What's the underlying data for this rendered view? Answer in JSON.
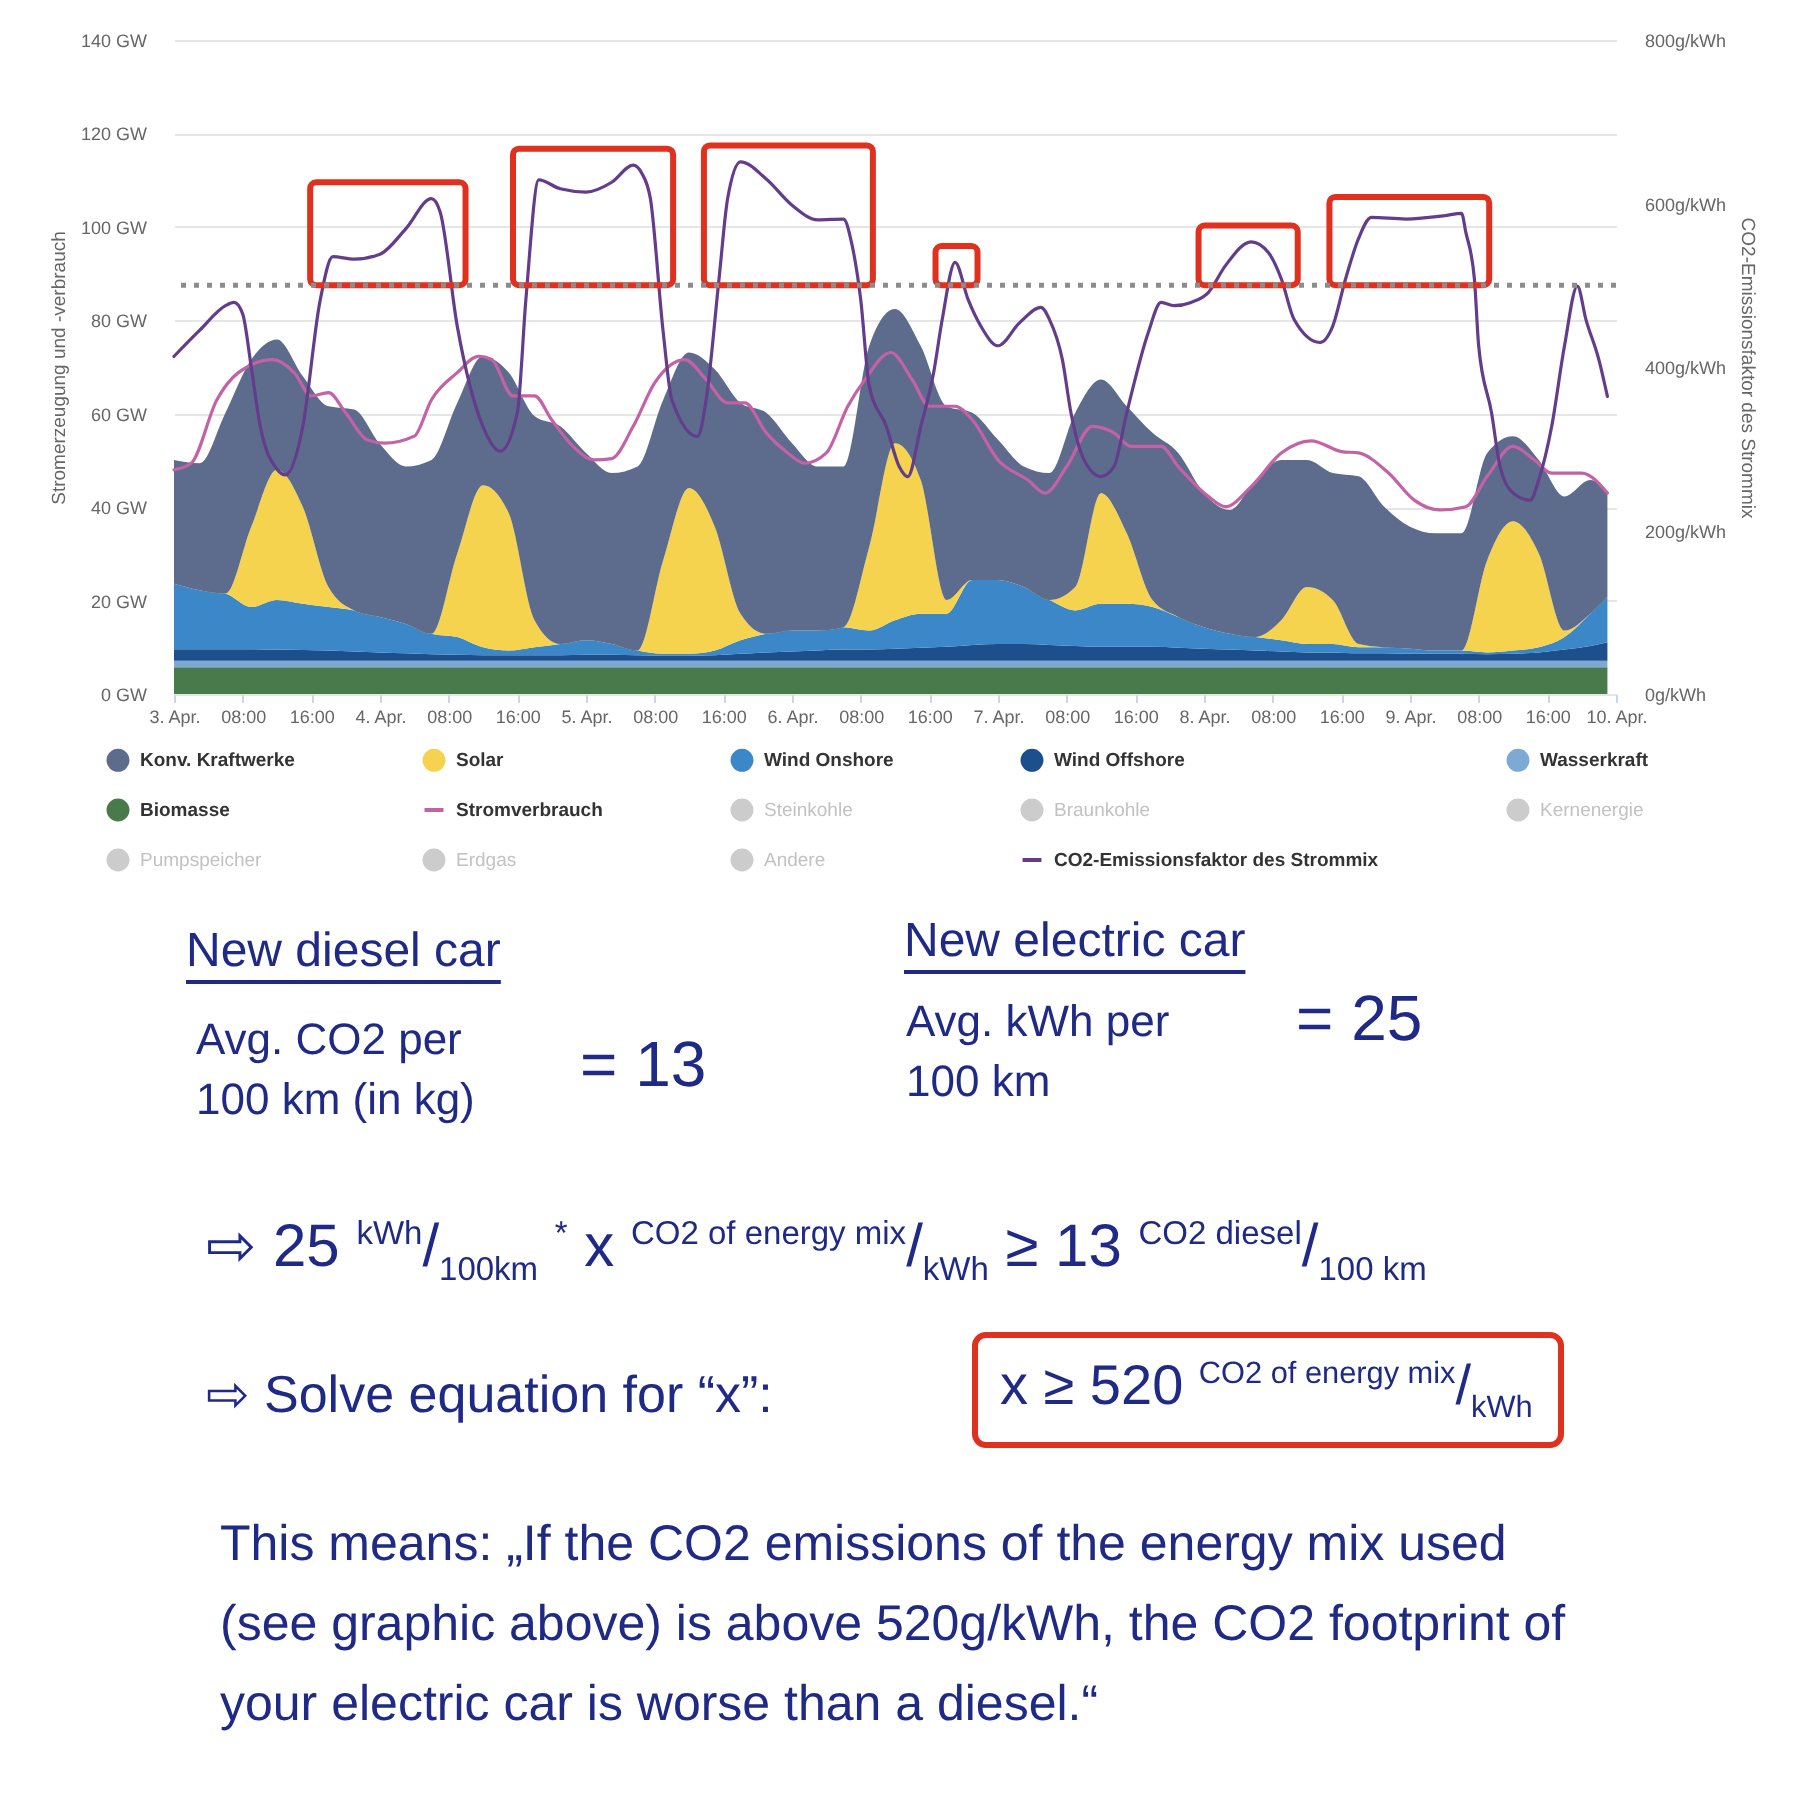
{
  "chart_data": {
    "type": "area",
    "stacked": true,
    "legend": "bottom",
    "grid": "y",
    "ylabel": "Stromerzeugung und -verbrauch",
    "y2label": "CO2-Emissionsfaktor des Strommix",
    "x": [
      "--04-03T00:00",
      "--04-03T03:00",
      "--04-03T06:00",
      "--04-03T09:00",
      "--04-03T12:00",
      "--04-03T15:00",
      "--04-03T18:00",
      "--04-03T21:00",
      "--04-04T00:00",
      "--04-04T03:00",
      "--04-04T06:00",
      "--04-04T09:00",
      "--04-04T12:00",
      "--04-04T15:00",
      "--04-04T18:00",
      "--04-04T21:00",
      "--04-05T00:00",
      "--04-05T03:00",
      "--04-05T06:00",
      "--04-05T09:00",
      "--04-05T12:00",
      "--04-05T15:00",
      "--04-05T18:00",
      "--04-05T21:00",
      "--04-06T00:00",
      "--04-06T03:00",
      "--04-06T06:00",
      "--04-06T09:00",
      "--04-06T12:00",
      "--04-06T15:00",
      "--04-06T18:00",
      "--04-06T21:00",
      "--04-07T00:00",
      "--04-07T03:00",
      "--04-07T06:00",
      "--04-07T09:00",
      "--04-07T12:00",
      "--04-07T15:00",
      "--04-07T18:00",
      "--04-07T21:00",
      "--04-08T00:00",
      "--04-08T03:00",
      "--04-08T06:00",
      "--04-08T09:00",
      "--04-08T12:00",
      "--04-08T15:00",
      "--04-08T18:00",
      "--04-08T21:00",
      "--04-09T00:00",
      "--04-09T03:00",
      "--04-09T06:00",
      "--04-09T09:00",
      "--04-09T12:00",
      "--04-09T15:00",
      "--04-09T18:00",
      "--04-09T21:00",
      "--04-09T23:00"
    ],
    "xlim": [
      "--04-03T00:00",
      "--04-10T00:00"
    ],
    "xticks": [
      {
        "value": "--04-03T00:00",
        "label": "3. Apr."
      },
      {
        "value": "--04-03T08:00",
        "label": "08:00"
      },
      {
        "value": "--04-03T16:00",
        "label": "16:00"
      },
      {
        "value": "--04-04T00:00",
        "label": "4. Apr."
      },
      {
        "value": "--04-04T08:00",
        "label": "08:00"
      },
      {
        "value": "--04-04T16:00",
        "label": "16:00"
      },
      {
        "value": "--04-05T00:00",
        "label": "5. Apr."
      },
      {
        "value": "--04-05T08:00",
        "label": "08:00"
      },
      {
        "value": "--04-05T16:00",
        "label": "16:00"
      },
      {
        "value": "--04-06T00:00",
        "label": "6. Apr."
      },
      {
        "value": "--04-06T08:00",
        "label": "08:00"
      },
      {
        "value": "--04-06T16:00",
        "label": "16:00"
      },
      {
        "value": "--04-07T00:00",
        "label": "7. Apr."
      },
      {
        "value": "--04-07T08:00",
        "label": "08:00"
      },
      {
        "value": "--04-07T16:00",
        "label": "16:00"
      },
      {
        "value": "--04-08T00:00",
        "label": "8. Apr."
      },
      {
        "value": "--04-08T08:00",
        "label": "08:00"
      },
      {
        "value": "--04-08T16:00",
        "label": "16:00"
      },
      {
        "value": "--04-09T00:00",
        "label": "9. Apr."
      },
      {
        "value": "--04-09T08:00",
        "label": "08:00"
      },
      {
        "value": "--04-09T16:00",
        "label": "16:00"
      },
      {
        "value": "--04-10T00:00",
        "label": "10. Apr."
      }
    ],
    "ylim": [
      0,
      140
    ],
    "yticks": [
      {
        "value": 0,
        "label": "0 GW"
      },
      {
        "value": 20,
        "label": "20 GW"
      },
      {
        "value": 40,
        "label": "40 GW"
      },
      {
        "value": 60,
        "label": "60 GW"
      },
      {
        "value": 80,
        "label": "80 GW"
      },
      {
        "value": 100,
        "label": "100 GW"
      },
      {
        "value": 120,
        "label": "120 GW"
      },
      {
        "value": 140,
        "label": "140 GW"
      }
    ],
    "y2lim": [
      0,
      800
    ],
    "y2ticks": [
      {
        "value": 0,
        "label": "0g/kWh"
      },
      {
        "value": 200,
        "label": "200g/kWh"
      },
      {
        "value": 400,
        "label": "400g/kWh"
      },
      {
        "value": 600,
        "label": "600g/kWh"
      },
      {
        "value": 800,
        "label": "800g/kWh"
      }
    ],
    "series": [
      {
        "name": "CO2-Emissionsfaktor des Strommix",
        "type": "line",
        "axis": "y2",
        "color": "#633d8c",
        "x": [
          "--04-03T00:00",
          "--04-03T03:00",
          "--04-03T06:00",
          "--04-03T07:00",
          "--04-03T08:00",
          "--04-03T09:00",
          "--04-03T10:00",
          "--04-03T12:00",
          "--04-03T13:00",
          "--04-03T15:00",
          "--04-03T17:00",
          "--04-03T18:30",
          "--04-03T21:00",
          "--04-04T00:00",
          "--04-04T03:00",
          "--04-04T06:00",
          "--04-04T07:00",
          "--04-04T09:00",
          "--04-04T12:00",
          "--04-04T14:00",
          "--04-04T16:00",
          "--04-04T17:00",
          "--04-04T18:30",
          "--04-04T21:00",
          "--04-05T00:00",
          "--04-05T03:00",
          "--04-05T05:30",
          "--04-05T06:30",
          "--04-05T07:30",
          "--04-05T09:00",
          "--04-05T10:00",
          "--04-05T13:00",
          "--04-05T14:00",
          "--04-05T15:30",
          "--04-05T16:30",
          "--04-05T18:00",
          "--04-05T21:00",
          "--04-06T00:00",
          "--04-06T03:00",
          "--04-06T06:00",
          "--04-06T07:00",
          "--04-06T08:00",
          "--04-06T09:00",
          "--04-06T11:00",
          "--04-06T12:30",
          "--04-06T13:30",
          "--04-06T15:00",
          "--04-06T16:30",
          "--04-06T17:30",
          "--04-06T19:00",
          "--04-06T20:30",
          "--04-06T22:00",
          "--04-07T00:00",
          "--04-07T02:30",
          "--04-07T05:00",
          "--04-07T06:00",
          "--04-07T07:30",
          "--04-07T08:30",
          "--04-07T10:00",
          "--04-07T12:00",
          "--04-07T13:30",
          "--04-07T15:00",
          "--04-07T17:30",
          "--04-07T19:00",
          "--04-07T20:30",
          "--04-07T22:30",
          "--04-08T00:30",
          "--04-08T02:30",
          "--04-08T05:30",
          "--04-08T07:30",
          "--04-08T09:00",
          "--04-08T10:30",
          "--04-08T13:30",
          "--04-08T15:00",
          "--04-08T16:30",
          "--04-08T18:00",
          "--04-08T19:30",
          "--04-08T23:30",
          "--04-09T04:00",
          "--04-09T06:00",
          "--04-09T06:30",
          "--04-09T07:30",
          "--04-09T08:00",
          "--04-09T09:30",
          "--04-09T10:30",
          "--04-09T12:00",
          "--04-09T14:00",
          "--04-09T15:00",
          "--04-09T16:30",
          "--04-09T18:00",
          "--04-09T19:30",
          "--04-09T20:30",
          "--04-09T22:00",
          "--04-09T23:00"
        ],
        "values": [
          413,
          445,
          475,
          479,
          465,
          400,
          330,
          275,
          268,
          327,
          480,
          535,
          532,
          538,
          569,
          606,
          590,
          450,
          327,
          297,
          344,
          483,
          629,
          618,
          614,
          626,
          647,
          637,
          606,
          442,
          360,
          315,
          360,
          508,
          606,
          651,
          630,
          598,
          580,
          581,
          549,
          483,
          377,
          327,
          278,
          266,
          327,
          393,
          458,
          528,
          483,
          450,
          426,
          454,
          473,
          458,
          409,
          344,
          287,
          266,
          278,
          344,
          442,
          479,
          475,
          479,
          491,
          524,
          553,
          540,
          508,
          458,
          430,
          450,
          508,
          557,
          583,
          581,
          585,
          588,
          565,
          508,
          426,
          344,
          278,
          246,
          237,
          262,
          327,
          426,
          499,
          458,
          409,
          364
        ]
      },
      {
        "name": "Andere",
        "color": "#cccccc",
        "values": [
          null,
          null,
          null,
          null,
          null,
          null,
          null,
          null,
          null,
          null,
          null,
          null,
          null,
          null,
          null,
          null,
          null,
          null,
          null,
          null,
          null,
          null,
          null,
          null,
          null,
          null,
          null,
          null,
          null,
          null,
          null,
          null,
          null,
          null,
          null,
          null,
          null,
          null,
          null,
          null,
          null,
          null,
          null,
          null,
          null,
          null,
          null,
          null,
          null,
          null,
          null,
          null,
          null,
          null,
          null,
          null,
          null
        ]
      },
      {
        "name": "Erdgas",
        "color": "#cccccc",
        "values": [
          null,
          null,
          null,
          null,
          null,
          null,
          null,
          null,
          null,
          null,
          null,
          null,
          null,
          null,
          null,
          null,
          null,
          null,
          null,
          null,
          null,
          null,
          null,
          null,
          null,
          null,
          null,
          null,
          null,
          null,
          null,
          null,
          null,
          null,
          null,
          null,
          null,
          null,
          null,
          null,
          null,
          null,
          null,
          null,
          null,
          null,
          null,
          null,
          null,
          null,
          null,
          null,
          null,
          null,
          null,
          null,
          null
        ]
      },
      {
        "name": "Pumpspeicher",
        "color": "#cccccc",
        "values": [
          null,
          null,
          null,
          null,
          null,
          null,
          null,
          null,
          null,
          null,
          null,
          null,
          null,
          null,
          null,
          null,
          null,
          null,
          null,
          null,
          null,
          null,
          null,
          null,
          null,
          null,
          null,
          null,
          null,
          null,
          null,
          null,
          null,
          null,
          null,
          null,
          null,
          null,
          null,
          null,
          null,
          null,
          null,
          null,
          null,
          null,
          null,
          null,
          null,
          null,
          null,
          null,
          null,
          null,
          null,
          null,
          null
        ]
      },
      {
        "name": "Kernenergie",
        "color": "#cccccc",
        "values": [
          null,
          null,
          null,
          null,
          null,
          null,
          null,
          null,
          null,
          null,
          null,
          null,
          null,
          null,
          null,
          null,
          null,
          null,
          null,
          null,
          null,
          null,
          null,
          null,
          null,
          null,
          null,
          null,
          null,
          null,
          null,
          null,
          null,
          null,
          null,
          null,
          null,
          null,
          null,
          null,
          null,
          null,
          null,
          null,
          null,
          null,
          null,
          null,
          null,
          null,
          null,
          null,
          null,
          null,
          null,
          null,
          null
        ]
      },
      {
        "name": "Braunkohle",
        "color": "#cccccc",
        "values": [
          null,
          null,
          null,
          null,
          null,
          null,
          null,
          null,
          null,
          null,
          null,
          null,
          null,
          null,
          null,
          null,
          null,
          null,
          null,
          null,
          null,
          null,
          null,
          null,
          null,
          null,
          null,
          null,
          null,
          null,
          null,
          null,
          null,
          null,
          null,
          null,
          null,
          null,
          null,
          null,
          null,
          null,
          null,
          null,
          null,
          null,
          null,
          null,
          null,
          null,
          null,
          null,
          null,
          null,
          null,
          null,
          null
        ]
      },
      {
        "name": "Steinkohle",
        "color": "#cccccc",
        "values": [
          null,
          null,
          null,
          null,
          null,
          null,
          null,
          null,
          null,
          null,
          null,
          null,
          null,
          null,
          null,
          null,
          null,
          null,
          null,
          null,
          null,
          null,
          null,
          null,
          null,
          null,
          null,
          null,
          null,
          null,
          null,
          null,
          null,
          null,
          null,
          null,
          null,
          null,
          null,
          null,
          null,
          null,
          null,
          null,
          null,
          null,
          null,
          null,
          null,
          null,
          null,
          null,
          null,
          null,
          null,
          null,
          null
        ]
      },
      {
        "name": "Stromverbrauch",
        "type": "line",
        "color": "#c462a6",
        "x": [
          "--04-03T00:00",
          "--04-03T02:00",
          "--04-03T05:00",
          "--04-03T07:30",
          "--04-03T11:30",
          "--04-03T14:00",
          "--04-03T16:00",
          "--04-03T18:00",
          "--04-03T20:00",
          "--04-03T22:30",
          "--04-04T00:30",
          "--04-04T04:00",
          "--04-04T06:00",
          "--04-04T09:00",
          "--04-04T11:30",
          "--04-04T13:00",
          "--04-04T15:30",
          "--04-04T18:00",
          "--04-04T20:00",
          "--04-04T22:30",
          "--04-05T01:00",
          "--04-05T03:00",
          "--04-05T05:30",
          "--04-05T08:00",
          "--04-05T11:30",
          "--04-05T14:00",
          "--04-05T16:30",
          "--04-05T18:30",
          "--04-05T21:00",
          "--04-05T23:30",
          "--04-06T01:30",
          "--04-06T04:00",
          "--04-06T06:30",
          "--04-06T08:30",
          "--04-06T11:30",
          "--04-06T14:00",
          "--04-06T16:00",
          "--04-06T19:00",
          "--04-06T21:00",
          "--04-07T00:00",
          "--04-07T03:30",
          "--04-07T05:30",
          "--04-07T08:00",
          "--04-07T11:00",
          "--04-07T13:30",
          "--04-07T15:30",
          "--04-07T19:00",
          "--04-07T21:00",
          "--04-08T00:30",
          "--04-08T02:30",
          "--04-08T05:30",
          "--04-08T09:00",
          "--04-08T12:30",
          "--04-08T16:00",
          "--04-08T18:00",
          "--04-08T21:30",
          "--04-09T00:30",
          "--04-09T03:30",
          "--04-09T06:30",
          "--04-09T09:00",
          "--04-09T12:00",
          "--04-09T14:30",
          "--04-09T16:30",
          "--04-09T20:00",
          "--04-09T23:00"
        ],
        "values": [
          48.0,
          49.4,
          63.0,
          68.8,
          71.6,
          68.8,
          63.8,
          64.5,
          60.2,
          54.4,
          53.7,
          55.2,
          63.0,
          68.8,
          72.3,
          71.6,
          63.8,
          63.8,
          58.7,
          53.0,
          50.1,
          50.4,
          57.3,
          66.6,
          71.6,
          67.3,
          62.3,
          62.3,
          55.9,
          51.6,
          49.4,
          51.6,
          61.6,
          67.3,
          73.1,
          67.3,
          61.6,
          61.6,
          58.7,
          50.1,
          45.8,
          43.0,
          48.7,
          57.3,
          55.9,
          53.0,
          53.0,
          48.7,
          42.3,
          40.1,
          44.4,
          51.6,
          54.2,
          51.9,
          51.6,
          47.3,
          41.5,
          39.4,
          40.1,
          46.6,
          53.0,
          50.1,
          47.3,
          47.3,
          43.0
        ]
      },
      {
        "name": "Biomasse",
        "color": "#487a4b",
        "values": [
          5.7,
          5.7,
          5.7,
          5.7,
          5.7,
          5.7,
          5.7,
          5.7,
          5.7,
          5.7,
          5.7,
          5.7,
          5.7,
          5.7,
          5.7,
          5.7,
          5.7,
          5.7,
          5.7,
          5.7,
          5.7,
          5.7,
          5.7,
          5.7,
          5.7,
          5.7,
          5.7,
          5.7,
          5.7,
          5.7,
          5.7,
          5.7,
          5.7,
          5.7,
          5.7,
          5.7,
          5.7,
          5.7,
          5.7,
          5.7,
          5.7,
          5.7,
          5.7,
          5.7,
          5.7,
          5.7,
          5.7,
          5.7,
          5.7,
          5.7,
          5.7,
          5.7,
          5.7,
          5.7,
          5.7,
          5.7,
          5.7
        ]
      },
      {
        "name": "Wasserkraft",
        "color": "#7daad4",
        "values": [
          1.4,
          1.4,
          1.4,
          1.4,
          1.4,
          1.4,
          1.4,
          1.4,
          1.4,
          1.4,
          1.4,
          1.4,
          1.4,
          1.4,
          1.4,
          1.4,
          1.4,
          1.4,
          1.4,
          1.4,
          1.4,
          1.4,
          1.4,
          1.4,
          1.4,
          1.4,
          1.4,
          1.4,
          1.4,
          1.4,
          1.4,
          1.4,
          1.4,
          1.4,
          1.4,
          1.4,
          1.4,
          1.4,
          1.4,
          1.4,
          1.4,
          1.4,
          1.4,
          1.4,
          1.4,
          1.4,
          1.4,
          1.4,
          1.4,
          1.4,
          1.4,
          1.4,
          1.4,
          1.4,
          1.4,
          1.4,
          1.4
        ]
      },
      {
        "name": "Wind Offshore",
        "color": "#1e4f8d",
        "values": [
          2.5,
          2.5,
          2.5,
          2.5,
          2.4,
          2.3,
          2.2,
          2.0,
          1.8,
          1.6,
          1.4,
          1.3,
          1.2,
          1.2,
          1.2,
          1.2,
          1.3,
          1.3,
          1.2,
          1.1,
          1.1,
          1.2,
          1.5,
          1.8,
          2.0,
          2.2,
          2.4,
          2.4,
          2.6,
          2.8,
          3.0,
          3.4,
          3.6,
          3.6,
          3.4,
          3.2,
          3.0,
          3.0,
          3.0,
          2.8,
          2.6,
          2.4,
          2.2,
          2.0,
          1.8,
          1.8,
          1.6,
          1.6,
          1.5,
          1.5,
          1.5,
          1.4,
          1.5,
          1.8,
          2.4,
          3.2,
          4.0
        ]
      },
      {
        "name": "Wind Onshore",
        "color": "#3b87c7",
        "values": [
          14.0,
          12.6,
          11.9,
          9.0,
          10.6,
          9.9,
          9.3,
          8.8,
          7.6,
          6.3,
          4.4,
          3.8,
          1.7,
          1.0,
          1.7,
          2.4,
          3.1,
          2.3,
          1.0,
          0.4,
          0.4,
          1.0,
          2.9,
          4.0,
          4.5,
          4.3,
          4.8,
          4.1,
          6.1,
          7.3,
          7.1,
          13.9,
          13.7,
          12.2,
          9.6,
          7.6,
          9.2,
          9.2,
          8.5,
          6.6,
          4.6,
          3.4,
          2.9,
          2.4,
          1.8,
          1.8,
          1.3,
          1.3,
          1.1,
          0.7,
          0.7,
          0.4,
          0.7,
          1.1,
          2.7,
          6.9,
          9.7
        ]
      },
      {
        "name": "Solar",
        "color": "#f5d34f",
        "values": [
          0,
          0,
          0,
          17.2,
          27.9,
          20.8,
          4.3,
          0,
          0,
          0,
          0,
          17.9,
          34.7,
          29.4,
          5.8,
          0,
          0,
          0,
          0,
          20.1,
          35.5,
          26.5,
          5.7,
          0,
          0,
          0,
          0,
          17.9,
          37.9,
          28.6,
          2.9,
          0,
          0,
          0,
          0,
          5.0,
          23.7,
          15.1,
          1.5,
          0,
          0,
          0,
          0,
          4.3,
          12.2,
          9.4,
          0.7,
          0,
          0,
          0,
          0,
          19.8,
          27.7,
          20.1,
          1.4,
          0,
          0
        ]
      },
      {
        "name": "Konv. Kraftwerke",
        "color": "#5d6b8c",
        "values": [
          26.5,
          27.2,
          38.7,
          35.8,
          27.9,
          28.0,
          38.7,
          43.0,
          37.0,
          33.7,
          37.2,
          32.2,
          27.6,
          30.1,
          43.7,
          46.6,
          40.1,
          36.6,
          39.4,
          34.3,
          29.0,
          33.7,
          45.1,
          47.3,
          40.1,
          35.1,
          34.4,
          43.0,
          28.7,
          28.7,
          41.5,
          35.8,
          30.0,
          25.8,
          27.2,
          37.3,
          24.3,
          27.2,
          35.8,
          35.1,
          28.7,
          26.5,
          33.6,
          34.3,
          27.2,
          27.2,
          35.9,
          30.1,
          26.1,
          25.1,
          25.1,
          22.9,
          18.2,
          20.0,
          28.7,
          28.6,
          22.2
        ]
      }
    ],
    "ref_lines": [
      {
        "axis": "y2",
        "value": 500,
        "color": "#8c8c8c",
        "line_style": "dotted"
      }
    ],
    "annotations": [
      "New diesel car",
      "Avg. CO2 per 100 km (in kg)",
      "= 13",
      "New electric car",
      "Avg. kWh per 100 km",
      "= 25",
      "⇨ 25 $^{kWh}$/$_{100km}$ $^{*}$ x $^{CO2 of energy mix}$/$_{kWh}$ ≥ 13 $^{CO2 diesel}$/$_{100 km}$",
      "⇨ Solve equation for “x”:",
      "x ≥ 520 $^{CO2 of energy mix}$/$_{kWh}$",
      "This means: „If the CO2 emissions of the energy mix used (see graphic above) is above 520g/kWh, the CO2 footprint of your electric car is worse than a diesel.“"
    ]
  }
}
